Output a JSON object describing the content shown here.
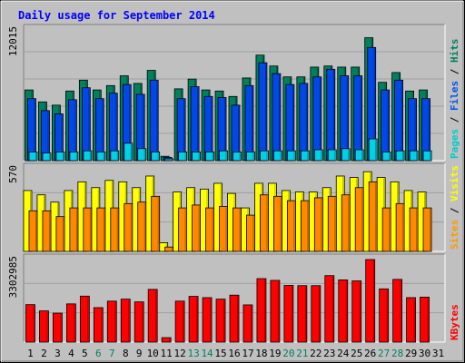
{
  "chart_data": {
    "type": "bar",
    "title": "Daily usage for September 2014",
    "days": [
      "1",
      "2",
      "3",
      "4",
      "5",
      "6",
      "7",
      "8",
      "9",
      "10",
      "11",
      "12",
      "13",
      "14",
      "15",
      "16",
      "17",
      "18",
      "19",
      "20",
      "21",
      "22",
      "23",
      "24",
      "25",
      "26",
      "27",
      "28",
      "29",
      "30",
      "31"
    ],
    "weekend_days": [
      "6",
      "7",
      "13",
      "14",
      "20",
      "21",
      "27",
      "28"
    ],
    "panels": [
      {
        "id": "hits-files-pages",
        "ymax_label": "12015",
        "ymax": 12015,
        "side_label": [
          {
            "text": "Pages",
            "color": "#00cccc"
          },
          {
            "text": " / ",
            "color": "#000000"
          },
          {
            "text": "Files",
            "color": "#0055ee"
          },
          {
            "text": " / ",
            "color": "#000000"
          },
          {
            "text": "Hits",
            "color": "#00805c"
          }
        ],
        "series": [
          {
            "name": "Hits",
            "color": "#00805c",
            "values": [
              6500,
              5400,
              5100,
              6400,
              7400,
              6500,
              6900,
              7800,
              7100,
              8300,
              400,
              6600,
              7500,
              6500,
              6400,
              5900,
              7600,
              9700,
              8700,
              7700,
              7700,
              8600,
              8700,
              8600,
              8600,
              11300,
              7200,
              8100,
              6400,
              6500,
              0
            ]
          },
          {
            "name": "Files",
            "color": "#0048e8",
            "values": [
              5700,
              4600,
              4300,
              5600,
              6700,
              5700,
              6200,
              7000,
              6100,
              7400,
              300,
              5700,
              6800,
              5900,
              5800,
              5100,
              6900,
              9000,
              8000,
              7000,
              7100,
              7700,
              8400,
              7800,
              7800,
              10400,
              6500,
              7400,
              5700,
              5700,
              0
            ]
          },
          {
            "name": "Pages",
            "color": "#00d0e8",
            "values": [
              800,
              700,
              800,
              800,
              900,
              800,
              900,
              1600,
              1100,
              800,
              100,
              800,
              800,
              800,
              900,
              800,
              800,
              900,
              900,
              900,
              900,
              1000,
              1000,
              1100,
              1000,
              2000,
              800,
              900,
              900,
              900,
              0
            ]
          }
        ]
      },
      {
        "id": "visits-sites",
        "ymax_label": "570",
        "ymax": 570,
        "side_label": [
          {
            "text": "Sites",
            "color": "#ff9900"
          },
          {
            "text": " / ",
            "color": "#000000"
          },
          {
            "text": "Visits",
            "color": "#ffff00"
          }
        ],
        "series": [
          {
            "name": "Visits",
            "color": "#ffff00",
            "values": [
              420,
              390,
              340,
              420,
              480,
              440,
              490,
              480,
              440,
              520,
              60,
              410,
              440,
              430,
              470,
              400,
              300,
              470,
              470,
              420,
              410,
              410,
              440,
              520,
              510,
              550,
              510,
              480,
              420,
              410,
              0
            ]
          },
          {
            "name": "Sites",
            "color": "#ff8800",
            "values": [
              280,
              280,
              240,
              300,
              300,
              300,
              300,
              330,
              340,
              380,
              30,
              300,
              320,
              300,
              310,
              300,
              250,
              390,
              380,
              350,
              350,
              370,
              380,
              390,
              440,
              480,
              300,
              330,
              300,
              300,
              0
            ]
          }
        ]
      },
      {
        "id": "kbytes",
        "ymax_label": "3302985",
        "ymax": 3302985,
        "side_label": [
          {
            "text": "KBytes",
            "color": "#ff0000"
          }
        ],
        "series": [
          {
            "name": "KBytes",
            "color": "#ff0000",
            "values": [
              1500000,
              1250000,
              1160000,
              1530000,
              1840000,
              1380000,
              1640000,
              1720000,
              1610000,
              2110000,
              180000,
              1640000,
              1830000,
              1780000,
              1720000,
              1880000,
              1490000,
              2540000,
              2470000,
              2270000,
              2260000,
              2260000,
              2660000,
              2490000,
              2450000,
              3302985,
              2130000,
              2510000,
              1780000,
              1800000,
              0
            ]
          }
        ]
      }
    ]
  },
  "colors": {
    "background": "#c0c0c0",
    "plot_background": "#c0c0c0",
    "title": "#0000ff",
    "weekday_label": "#000000",
    "weekend_label": "#00805c"
  }
}
